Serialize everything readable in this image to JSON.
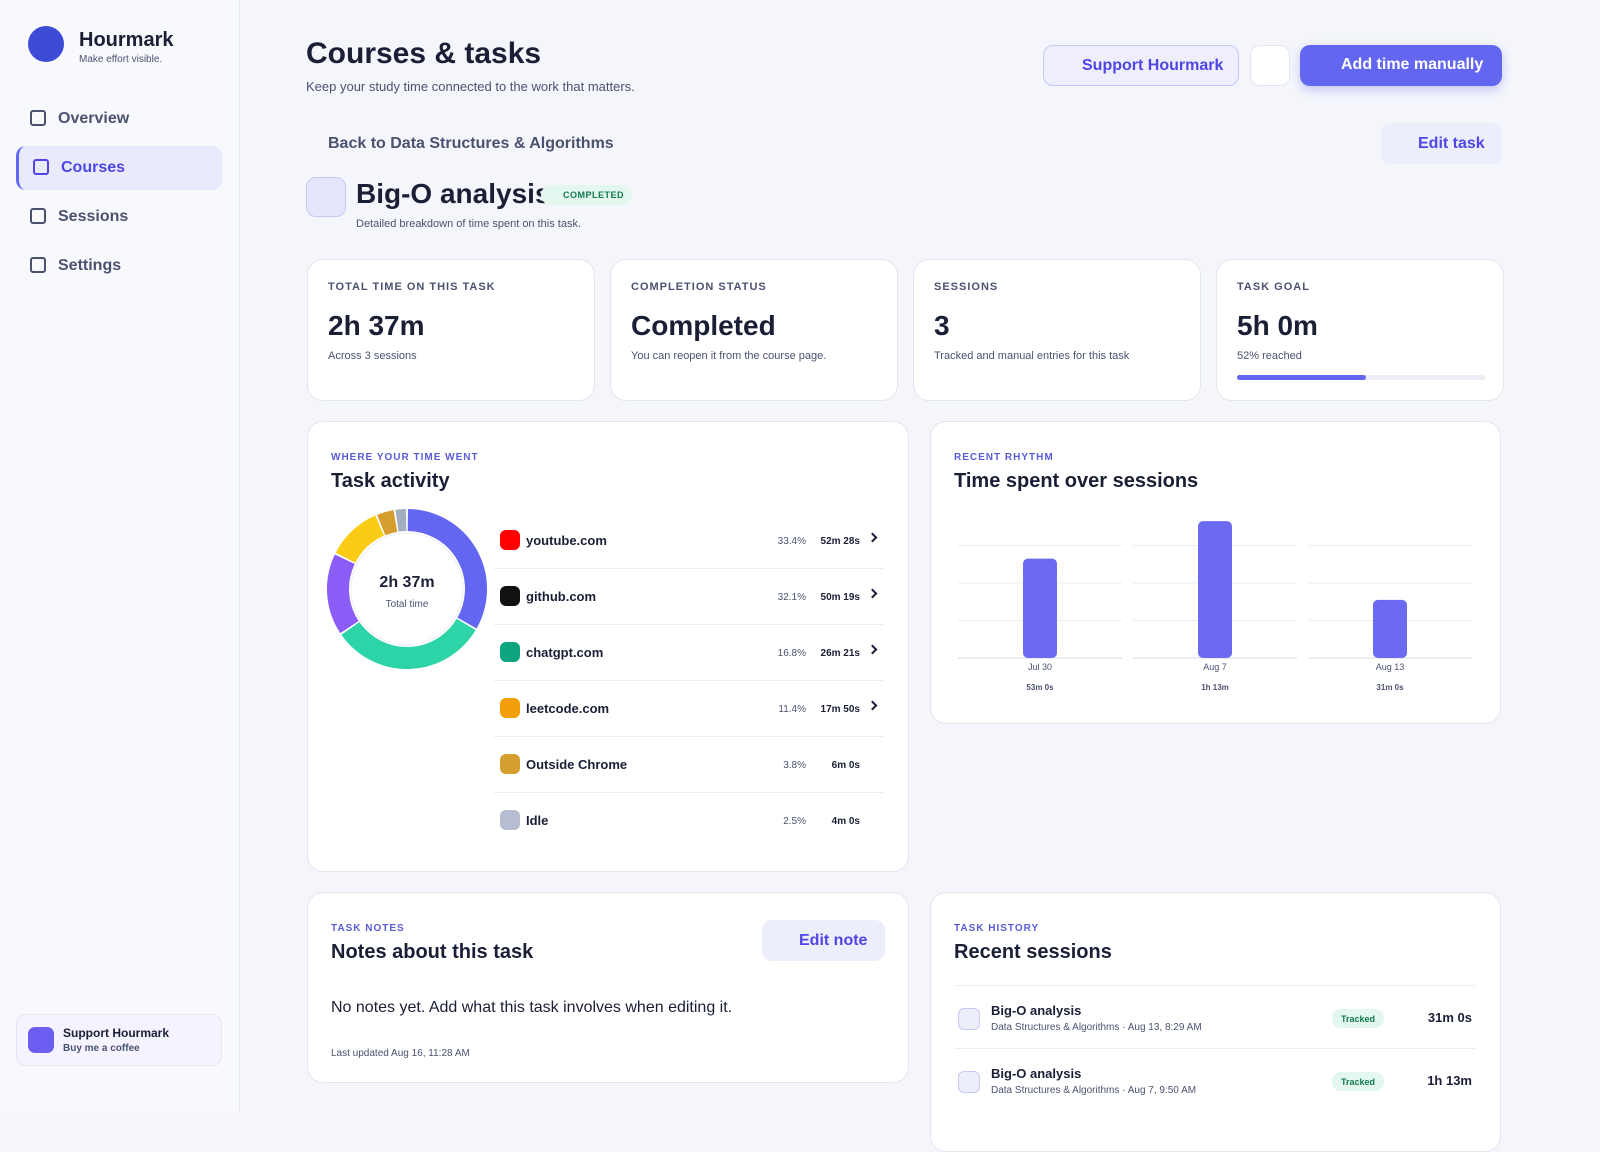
{
  "sidebar": {
    "brand": "Hourmark",
    "tagline": "Make effort visible.",
    "nav": [
      "Overview",
      "Courses",
      "Sessions",
      "Settings"
    ],
    "support_title": "Support Hourmark",
    "support_sub": "Buy me a coffee"
  },
  "header": {
    "title": "Courses & tasks",
    "subtitle": "Keep your study time connected to the work that matters.",
    "support_button": "Support Hourmark",
    "add_button": "Add time manually"
  },
  "task": {
    "back": "Back to Data Structures & Algorithms",
    "edit": "Edit task",
    "name": "Big-O analysis",
    "badge": "COMPLETED",
    "description": "Detailed breakdown of time spent on this task."
  },
  "stats": [
    {
      "label": "TOTAL TIME ON THIS TASK",
      "value": "2h 37m",
      "note": "Across 3 sessions"
    },
    {
      "label": "COMPLETION STATUS",
      "value": "Completed",
      "note": "You can reopen it from the course page."
    },
    {
      "label": "SESSIONS",
      "value": "3",
      "note": "Tracked and manual entries for this task"
    },
    {
      "label": "TASK GOAL",
      "value": "5h 0m",
      "note": "52% reached",
      "progress": 52
    }
  ],
  "activity": {
    "type": "pie",
    "eyebrow": "WHERE YOUR TIME WENT",
    "title": "Task activity",
    "center_value": "2h 37m",
    "center_label": "Total time",
    "categories": [
      "youtube.com",
      "github.com",
      "chatgpt.com",
      "leetcode.com",
      "Outside Chrome",
      "Idle"
    ],
    "values": [
      33.4,
      32.1,
      16.8,
      11.4,
      3.8,
      2.5
    ],
    "value_labels": [
      "33.4%",
      "32.1%",
      "16.8%",
      "11.4%",
      "3.8%",
      "2.5%"
    ],
    "durations": [
      "52m 28s",
      "50m 19s",
      "26m 21s",
      "17m 50s",
      "6m 0s",
      "4m 0s"
    ],
    "colors": [
      "#6366f1",
      "#2dd4a7",
      "#8b5cf6",
      "#facc15",
      "#d69e2e",
      "#a0aec0"
    ]
  },
  "rhythm": {
    "type": "bar",
    "eyebrow": "RECENT RHYTHM",
    "title": "Time spent over sessions",
    "categories": [
      "Jul 30",
      "Aug 7",
      "Aug 13"
    ],
    "values": [
      53,
      73,
      31
    ],
    "value_labels": [
      "53m 0s",
      "1h 13m",
      "31m 0s"
    ],
    "ylim": [
      0,
      80
    ],
    "yticks": [
      0,
      20,
      40,
      60
    ],
    "color": "#6d6af2",
    "grid": true
  },
  "notes": {
    "eyebrow": "TASK NOTES",
    "title": "Notes about this task",
    "edit": "Edit note",
    "body": "No notes yet. Add what this task involves when editing it.",
    "updated": "Last updated Aug 16, 11:28 AM"
  },
  "history": {
    "eyebrow": "TASK HISTORY",
    "title": "Recent sessions",
    "rows": [
      {
        "name": "Big-O analysis",
        "meta": "Data Structures & Algorithms · Aug 13, 8:29 AM",
        "kind": "Tracked",
        "time": "31m 0s"
      },
      {
        "name": "Big-O analysis",
        "meta": "Data Structures & Algorithms · Aug 7, 9:50 AM",
        "kind": "Tracked",
        "time": "1h 13m"
      }
    ]
  }
}
